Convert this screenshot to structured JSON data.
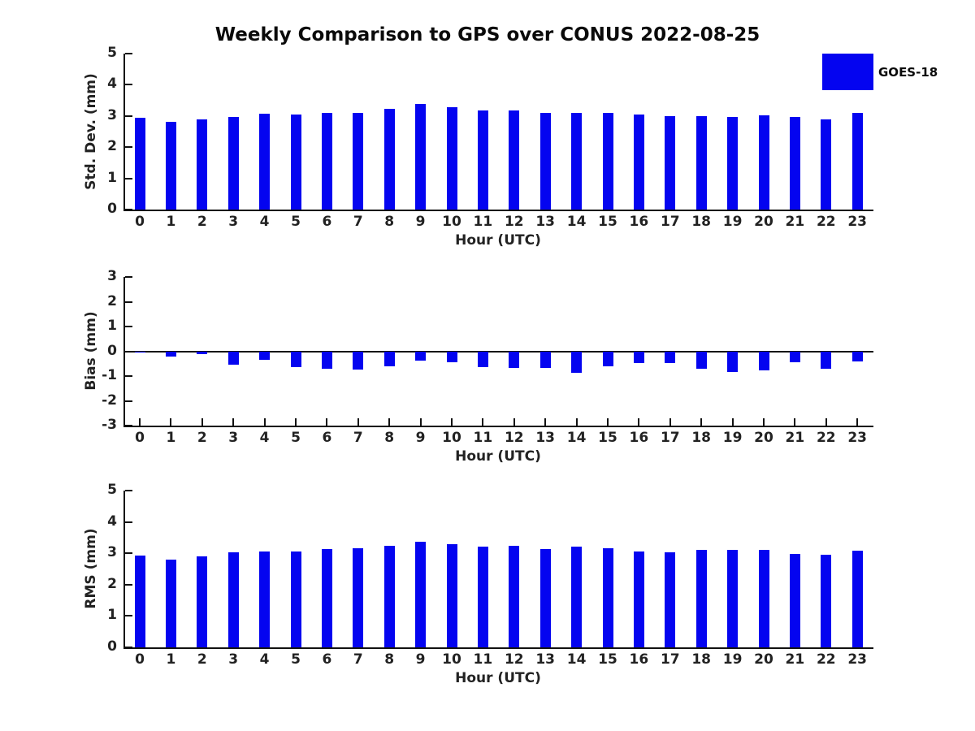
{
  "title": "Weekly Comparison to GPS over CONUS 2022-08-25",
  "legend": {
    "label": "GOES-18",
    "swatch_color": "#0404f0"
  },
  "colors": {
    "bar": "#0404f0",
    "axis": "#111111",
    "background": "#ffffff"
  },
  "chart_data": [
    {
      "type": "bar",
      "title": "Weekly Comparison to GPS over CONUS 2022-08-25",
      "ylabel": "Std. Dev. (mm)",
      "xlabel": "Hour (UTC)",
      "categories": [
        "0",
        "1",
        "2",
        "3",
        "4",
        "5",
        "6",
        "7",
        "8",
        "9",
        "10",
        "11",
        "12",
        "13",
        "14",
        "15",
        "16",
        "17",
        "18",
        "19",
        "20",
        "21",
        "22",
        "23"
      ],
      "values": [
        2.93,
        2.82,
        2.9,
        2.98,
        3.06,
        3.04,
        3.09,
        3.11,
        3.22,
        3.38,
        3.29,
        3.17,
        3.19,
        3.09,
        3.11,
        3.1,
        3.04,
        3.0,
        3.0,
        2.97,
        3.03,
        2.96,
        2.9,
        3.1
      ],
      "ylim": [
        0,
        5
      ],
      "yticks": [
        "0",
        "1",
        "2",
        "3",
        "4",
        "5"
      ],
      "legend": "GOES-18",
      "grid": false,
      "legend_position": "upper right"
    },
    {
      "type": "bar",
      "ylabel": "Bias (mm)",
      "xlabel": "Hour (UTC)",
      "categories": [
        "0",
        "1",
        "2",
        "3",
        "4",
        "5",
        "6",
        "7",
        "8",
        "9",
        "10",
        "11",
        "12",
        "13",
        "14",
        "15",
        "16",
        "17",
        "18",
        "19",
        "20",
        "21",
        "22",
        "23"
      ],
      "values": [
        -0.03,
        -0.22,
        -0.11,
        -0.53,
        -0.36,
        -0.65,
        -0.7,
        -0.73,
        -0.6,
        -0.38,
        -0.45,
        -0.63,
        -0.68,
        -0.67,
        -0.88,
        -0.61,
        -0.48,
        -0.48,
        -0.72,
        -0.83,
        -0.77,
        -0.43,
        -0.72,
        -0.42
      ],
      "ylim": [
        -3,
        3
      ],
      "yticks": [
        "-3",
        "-2",
        "-1",
        "0",
        "1",
        "2",
        "3"
      ],
      "grid": false,
      "zero_line": true
    },
    {
      "type": "bar",
      "ylabel": "RMS (mm)",
      "xlabel": "Hour (UTC)",
      "categories": [
        "0",
        "1",
        "2",
        "3",
        "4",
        "5",
        "6",
        "7",
        "8",
        "9",
        "10",
        "11",
        "12",
        "13",
        "14",
        "15",
        "16",
        "17",
        "18",
        "19",
        "20",
        "21",
        "22",
        "23"
      ],
      "values": [
        2.93,
        2.8,
        2.9,
        3.03,
        3.06,
        3.06,
        3.14,
        3.16,
        3.24,
        3.38,
        3.3,
        3.22,
        3.24,
        3.13,
        3.22,
        3.17,
        3.05,
        3.04,
        3.1,
        3.1,
        3.12,
        2.97,
        2.95,
        3.09
      ],
      "ylim": [
        0,
        5
      ],
      "yticks": [
        "0",
        "1",
        "2",
        "3",
        "4",
        "5"
      ],
      "grid": false
    }
  ]
}
